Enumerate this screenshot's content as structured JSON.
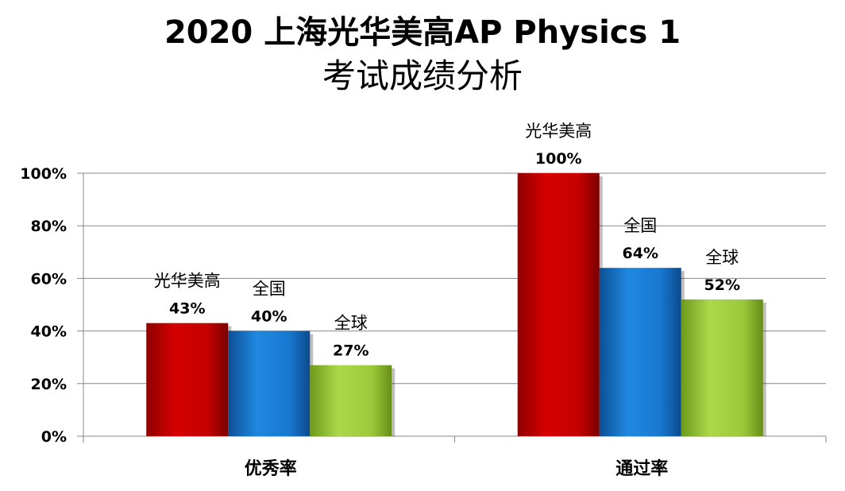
{
  "title_line1": "2020 上海光华美高AP Physics 1",
  "title_line2": "考试成绩分析",
  "chart_data": {
    "type": "bar",
    "title": "2020 上海光华美高AP Physics 1 考试成绩分析",
    "categories": [
      "优秀率",
      "通过率"
    ],
    "series": [
      {
        "name": "光华美高",
        "values": [
          43,
          100
        ],
        "labels": [
          "43%",
          "100%"
        ]
      },
      {
        "name": "全国",
        "values": [
          40,
          64
        ],
        "labels": [
          "40%",
          "64%"
        ]
      },
      {
        "name": "全球",
        "values": [
          27,
          52
        ],
        "labels": [
          "27%",
          "52%"
        ]
      }
    ],
    "ylim": [
      0,
      100
    ],
    "yticks": [
      "0%",
      "20%",
      "40%",
      "60%",
      "80%",
      "100%"
    ],
    "grid": true,
    "legend": "none"
  },
  "colors": {
    "光华美高": "#cc0000",
    "全国": "#1a78d0",
    "全球": "#9ccc3a",
    "grid": "#888888"
  }
}
